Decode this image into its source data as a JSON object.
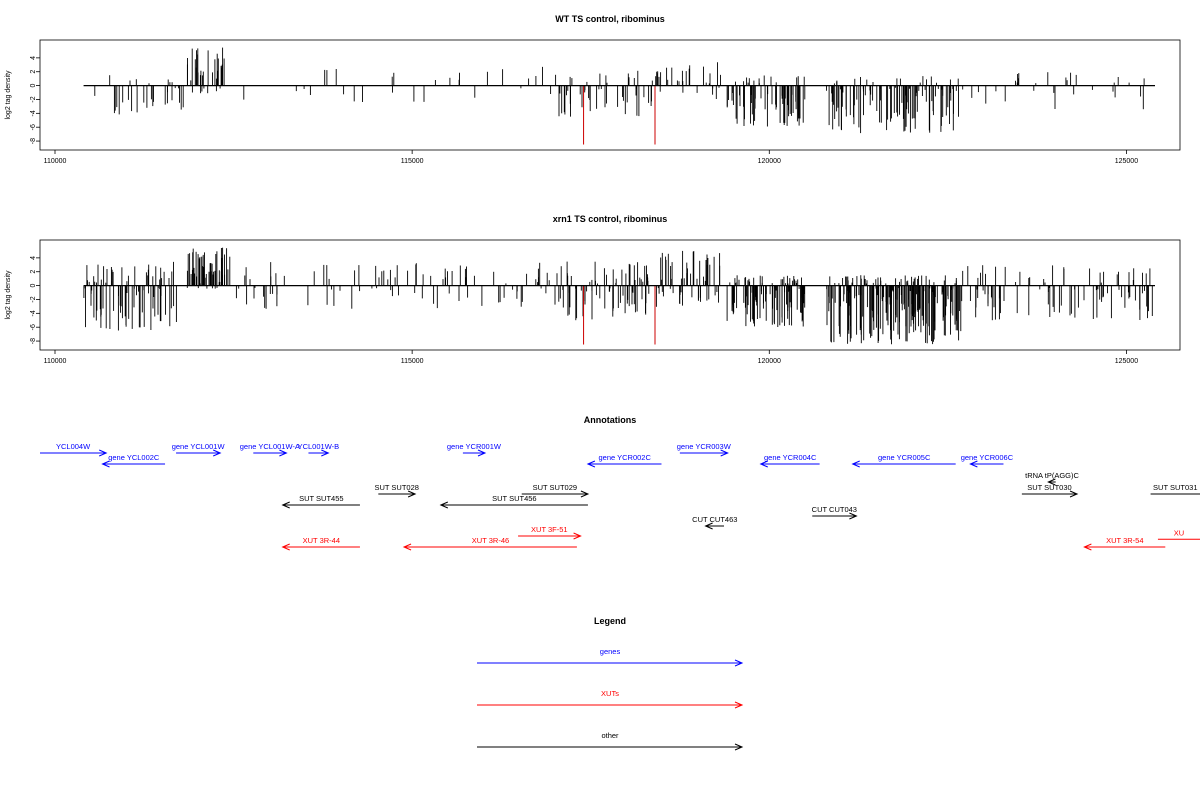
{
  "chart_data": [
    {
      "type": "bar",
      "title": "WT TS control, ribominus",
      "ylabel": "log2 tag density",
      "xlim": [
        110000,
        125400
      ],
      "ylim": [
        -9,
        6
      ],
      "x_ticks": [
        110000,
        115000,
        120000,
        125000
      ],
      "y_ticks": [
        4,
        2,
        0,
        -2,
        -4,
        -6,
        -8
      ],
      "baseline": [
        110400,
        125400
      ],
      "red_bars": [
        {
          "x": 117400,
          "y": -8.5
        },
        {
          "x": 118400,
          "y": -8.5
        }
      ],
      "regions": [
        {
          "from": 110550,
          "to": 111800,
          "min": -4.5,
          "max": 2,
          "n": 30
        },
        {
          "from": 111850,
          "to": 112450,
          "min": -1.2,
          "max": 5.5,
          "n": 35
        },
        {
          "from": 112450,
          "to": 117050,
          "min": -2.5,
          "max": 3,
          "n": 28
        },
        {
          "from": 117050,
          "to": 118450,
          "min": -4.5,
          "max": 2.5,
          "n": 50
        },
        {
          "from": 118450,
          "to": 119350,
          "min": -2,
          "max": 3.5,
          "n": 25
        },
        {
          "from": 119400,
          "to": 120500,
          "min": -6,
          "max": 1.5,
          "n": 70
        },
        {
          "from": 120800,
          "to": 122700,
          "min": -7,
          "max": 1.5,
          "n": 110
        },
        {
          "from": 122700,
          "to": 125400,
          "min": -3.5,
          "max": 2,
          "n": 30
        }
      ]
    },
    {
      "type": "bar",
      "title": "xrn1 TS control, ribominus",
      "ylabel": "log2 tag density",
      "xlim": [
        110000,
        125400
      ],
      "ylim": [
        -9,
        6
      ],
      "x_ticks": [
        110000,
        115000,
        120000,
        125000
      ],
      "y_ticks": [
        4,
        2,
        0,
        -2,
        -4,
        -6,
        -8
      ],
      "baseline": [
        110400,
        125400
      ],
      "red_bars": [
        {
          "x": 117400,
          "y": -8.5
        },
        {
          "x": 118400,
          "y": -8.5
        }
      ],
      "regions": [
        {
          "from": 110400,
          "to": 111700,
          "min": -6.5,
          "max": 3.5,
          "n": 90
        },
        {
          "from": 111850,
          "to": 112450,
          "min": -0.5,
          "max": 5.5,
          "n": 60
        },
        {
          "from": 112450,
          "to": 117050,
          "min": -3.5,
          "max": 3.5,
          "n": 90
        },
        {
          "from": 117050,
          "to": 118450,
          "min": -5,
          "max": 3.5,
          "n": 80
        },
        {
          "from": 118450,
          "to": 119350,
          "min": -3,
          "max": 5,
          "n": 50
        },
        {
          "from": 119400,
          "to": 120500,
          "min": -6,
          "max": 1.5,
          "n": 110
        },
        {
          "from": 120800,
          "to": 122700,
          "min": -8.5,
          "max": 1.5,
          "n": 220
        },
        {
          "from": 122700,
          "to": 125400,
          "min": -5,
          "max": 3,
          "n": 90
        }
      ]
    }
  ],
  "annotations": {
    "title": "Annotations",
    "colors": {
      "gene": "#0000ff",
      "xut": "#ff0000",
      "other": "#000000"
    },
    "items": [
      {
        "label": "YCL004W",
        "kind": "gene",
        "from": 110000,
        "to": 110900,
        "dir": "+",
        "row": 0
      },
      {
        "label": "gene YCL002C",
        "kind": "gene",
        "from": 110850,
        "to": 111700,
        "dir": "-",
        "row": 1
      },
      {
        "label": "gene YCL001W",
        "kind": "gene",
        "from": 111850,
        "to": 112450,
        "dir": "+",
        "row": 0
      },
      {
        "label": "gene YCL001W-A",
        "kind": "gene",
        "from": 112900,
        "to": 113350,
        "dir": "+",
        "row": 0
      },
      {
        "label": "YCL001W-B",
        "kind": "gene",
        "from": 113650,
        "to": 113920,
        "dir": "+",
        "row": 0
      },
      {
        "label": "gene YCR001W",
        "kind": "gene",
        "from": 115750,
        "to": 116050,
        "dir": "+",
        "row": 0
      },
      {
        "label": "gene YCR002C",
        "kind": "gene",
        "from": 117450,
        "to": 118450,
        "dir": "-",
        "row": 1
      },
      {
        "label": "gene YCR003W",
        "kind": "gene",
        "from": 118700,
        "to": 119350,
        "dir": "+",
        "row": 0
      },
      {
        "label": "gene YCR004C",
        "kind": "gene",
        "from": 119800,
        "to": 120600,
        "dir": "-",
        "row": 1
      },
      {
        "label": "gene YCR005C",
        "kind": "gene",
        "from": 121050,
        "to": 122450,
        "dir": "-",
        "row": 1
      },
      {
        "label": "gene YCR006C",
        "kind": "gene",
        "from": 122650,
        "to": 123100,
        "dir": "-",
        "row": 1
      },
      {
        "label": "SUT SUT455",
        "kind": "other",
        "from": 113300,
        "to": 114350,
        "dir": "-",
        "row": 3
      },
      {
        "label": "SUT SUT028",
        "kind": "other",
        "from": 114600,
        "to": 115100,
        "dir": "+",
        "row": 2
      },
      {
        "label": "SUT SUT456",
        "kind": "other",
        "from": 115450,
        "to": 117450,
        "dir": "-",
        "row": 3
      },
      {
        "label": "SUT SUT029",
        "kind": "other",
        "from": 116550,
        "to": 117450,
        "dir": "+",
        "row": 2
      },
      {
        "label": "CUT CUT463",
        "kind": "other",
        "from": 119050,
        "to": 119300,
        "dir": "-",
        "row": 5
      },
      {
        "label": "CUT CUT043",
        "kind": "other",
        "from": 120500,
        "to": 121100,
        "dir": "+",
        "row": 4
      },
      {
        "label": "tRNA tP(AGG)C",
        "kind": "other",
        "from": 123710,
        "to": 123810,
        "dir": "-",
        "row": 1.6
      },
      {
        "label": "SUT SUT030",
        "kind": "other",
        "from": 123350,
        "to": 124100,
        "dir": "+",
        "row": 2
      },
      {
        "label": "SUT SUT031",
        "kind": "other",
        "from": 125100,
        "to": 125900,
        "dir": "+",
        "row": 2
      },
      {
        "label": "XUT 3F-51",
        "kind": "xut",
        "from": 116500,
        "to": 117350,
        "dir": "+",
        "row": 6
      },
      {
        "label": "XUT 3R-44",
        "kind": "xut",
        "from": 113300,
        "to": 114350,
        "dir": "-",
        "row": 7
      },
      {
        "label": "XUT 3R-46",
        "kind": "xut",
        "from": 114950,
        "to": 117300,
        "dir": "-",
        "row": 7
      },
      {
        "label": "XUT 3R-54",
        "kind": "xut",
        "from": 124200,
        "to": 125300,
        "dir": "-",
        "row": 7
      },
      {
        "label": "XU",
        "kind": "xut",
        "from": 125200,
        "to": 126500,
        "dir": "+",
        "row": 6.3
      }
    ]
  },
  "legend": {
    "title": "Legend",
    "entries": [
      {
        "label": "genes",
        "color": "#0000ff"
      },
      {
        "label": "XUTs",
        "color": "#ff0000"
      },
      {
        "label": "other",
        "color": "#000000"
      }
    ]
  }
}
